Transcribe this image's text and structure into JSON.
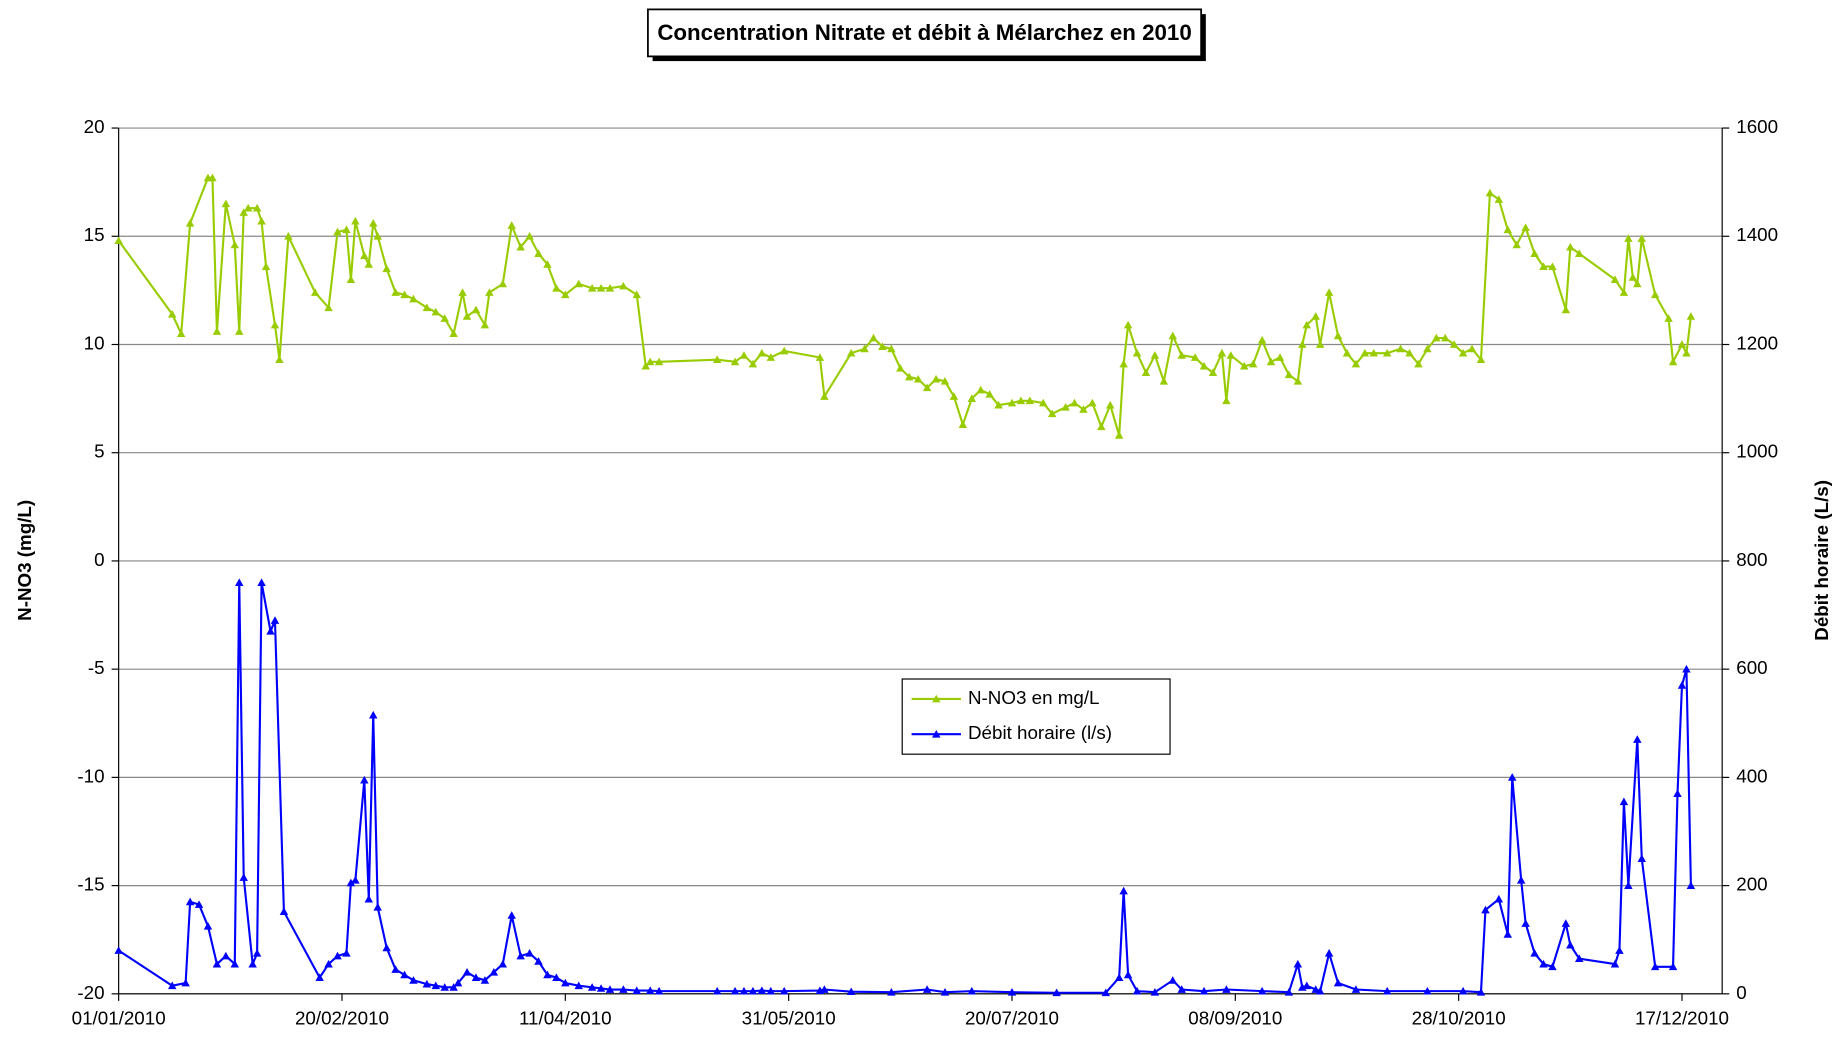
{
  "chart_data": {
    "type": "line",
    "title": "Concentration Nitrate et débit à Mélarchez en 2010",
    "y_label": "N-NO3 (mg/L)",
    "y2_label": "Débit horaire (L/s)",
    "xlim": [
      "01/01/2010",
      "26/12/2010"
    ],
    "xticks": [
      "01/01/2010",
      "20/02/2010",
      "11/04/2010",
      "31/05/2010",
      "20/07/2010",
      "08/09/2010",
      "28/10/2010",
      "17/12/2010"
    ],
    "ylim": [
      -20,
      20
    ],
    "yticks": [
      -20,
      -15,
      -10,
      -5,
      0,
      5,
      10,
      15,
      20
    ],
    "y2lim": [
      0,
      1600
    ],
    "y2ticks": [
      0,
      200,
      400,
      600,
      800,
      1000,
      1200,
      1400,
      1600
    ],
    "grid": true,
    "legend": "center",
    "series": [
      {
        "name": "N-NO3 en mg/L",
        "color": "#99cc00",
        "axis": "y",
        "x": [
          "01/01/2010",
          "13/01/2010",
          "15/01/2010",
          "17/01/2010",
          "21/01/2010",
          "22/01/2010",
          "23/01/2010",
          "25/01/2010",
          "27/01/2010",
          "28/01/2010",
          "29/01/2010",
          "30/01/2010",
          "01/02/2010",
          "02/02/2010",
          "03/02/2010",
          "05/02/2010",
          "06/02/2010",
          "08/02/2010",
          "14/02/2010",
          "17/02/2010",
          "19/02/2010",
          "21/02/2010",
          "22/02/2010",
          "23/02/2010",
          "25/02/2010",
          "26/02/2010",
          "27/02/2010",
          "28/02/2010",
          "02/03/2010",
          "04/03/2010",
          "06/03/2010",
          "08/03/2010",
          "11/03/2010",
          "13/03/2010",
          "15/03/2010",
          "17/03/2010",
          "19/03/2010",
          "20/03/2010",
          "22/03/2010",
          "24/03/2010",
          "25/03/2010",
          "28/03/2010",
          "30/03/2010",
          "01/04/2010",
          "03/04/2010",
          "05/04/2010",
          "07/04/2010",
          "09/04/2010",
          "11/04/2010",
          "14/04/2010",
          "17/04/2010",
          "19/04/2010",
          "21/04/2010",
          "24/04/2010",
          "27/04/2010",
          "29/04/2010",
          "30/04/2010",
          "02/05/2010",
          "15/05/2010",
          "19/05/2010",
          "21/05/2010",
          "23/05/2010",
          "25/05/2010",
          "27/05/2010",
          "30/05/2010",
          "07/06/2010",
          "08/06/2010",
          "14/06/2010",
          "17/06/2010",
          "19/06/2010",
          "21/06/2010",
          "23/06/2010",
          "25/06/2010",
          "27/06/2010",
          "29/06/2010",
          "01/07/2010",
          "03/07/2010",
          "05/07/2010",
          "07/07/2010",
          "09/07/2010",
          "11/07/2010",
          "13/07/2010",
          "15/07/2010",
          "17/07/2010",
          "20/07/2010",
          "22/07/2010",
          "24/07/2010",
          "27/07/2010",
          "29/07/2010",
          "01/08/2010",
          "03/08/2010",
          "05/08/2010",
          "07/08/2010",
          "09/08/2010",
          "11/08/2010",
          "13/08/2010",
          "14/08/2010",
          "15/08/2010",
          "17/08/2010",
          "19/08/2010",
          "21/08/2010",
          "23/08/2010",
          "25/08/2010",
          "27/08/2010",
          "30/08/2010",
          "01/09/2010",
          "03/09/2010",
          "05/09/2010",
          "06/09/2010",
          "07/09/2010",
          "10/09/2010",
          "12/09/2010",
          "14/09/2010",
          "16/09/2010",
          "18/09/2010",
          "20/09/2010",
          "22/09/2010",
          "23/09/2010",
          "24/09/2010",
          "26/09/2010",
          "27/09/2010",
          "29/09/2010",
          "01/10/2010",
          "03/10/2010",
          "05/10/2010",
          "07/10/2010",
          "09/10/2010",
          "12/10/2010",
          "15/10/2010",
          "17/10/2010",
          "19/10/2010",
          "21/10/2010",
          "23/10/2010",
          "25/10/2010",
          "27/10/2010",
          "29/10/2010",
          "31/10/2010",
          "02/11/2010",
          "04/11/2010",
          "06/11/2010",
          "08/11/2010",
          "10/11/2010",
          "12/11/2010",
          "14/11/2010",
          "16/11/2010",
          "18/11/2010",
          "21/11/2010",
          "22/11/2010",
          "24/11/2010",
          "02/12/2010",
          "04/12/2010",
          "05/12/2010",
          "06/12/2010",
          "07/12/2010",
          "08/12/2010",
          "11/12/2010",
          "14/12/2010",
          "15/12/2010",
          "17/12/2010",
          "18/12/2010",
          "19/12/2010"
        ],
        "values": [
          14.8,
          11.4,
          10.5,
          15.6,
          17.7,
          17.7,
          10.6,
          16.5,
          14.6,
          10.6,
          16.1,
          16.3,
          16.3,
          15.7,
          13.6,
          10.9,
          9.3,
          15.0,
          12.4,
          11.7,
          15.2,
          15.3,
          13.0,
          15.7,
          14.1,
          13.7,
          15.6,
          15.0,
          13.5,
          12.4,
          12.3,
          12.1,
          11.7,
          11.5,
          11.2,
          10.5,
          12.4,
          11.3,
          11.6,
          10.9,
          12.4,
          12.8,
          15.5,
          14.5,
          15.0,
          14.2,
          13.7,
          12.6,
          12.3,
          12.8,
          12.6,
          12.6,
          12.6,
          12.7,
          12.3,
          9.0,
          9.2,
          9.2,
          9.3,
          9.2,
          9.5,
          9.1,
          9.6,
          9.4,
          9.7,
          9.4,
          7.6,
          9.6,
          9.8,
          10.3,
          9.9,
          9.8,
          8.9,
          8.5,
          8.4,
          8.0,
          8.4,
          8.3,
          7.6,
          6.3,
          7.5,
          7.9,
          7.7,
          7.2,
          7.3,
          7.4,
          7.4,
          7.3,
          6.8,
          7.1,
          7.3,
          7.0,
          7.3,
          6.2,
          7.2,
          5.8,
          9.1,
          10.9,
          9.6,
          8.7,
          9.5,
          8.3,
          10.4,
          9.5,
          9.4,
          9.0,
          8.7,
          9.6,
          7.4,
          9.5,
          9.0,
          9.1,
          10.2,
          9.2,
          9.4,
          8.6,
          8.3,
          10.0,
          10.9,
          11.3,
          10.0,
          12.4,
          10.4,
          9.6,
          9.1,
          9.6,
          9.6,
          9.6,
          9.8,
          9.6,
          9.1,
          9.8,
          10.3,
          10.3,
          10.0,
          9.6,
          9.8,
          9.3,
          17.0,
          16.7,
          15.3,
          14.6,
          15.4,
          14.2,
          13.6,
          13.6,
          11.6,
          14.5,
          14.2,
          13.0,
          12.4,
          14.9,
          13.1,
          12.8,
          14.9,
          12.3,
          11.2,
          9.2,
          10.0,
          9.6,
          11.3
        ]
      },
      {
        "name": "Débit horaire (l/s)",
        "color": "#0000ff",
        "axis": "y2",
        "x": [
          "01/01/2010",
          "13/01/2010",
          "16/01/2010",
          "17/01/2010",
          "19/01/2010",
          "21/01/2010",
          "23/01/2010",
          "25/01/2010",
          "27/01/2010",
          "28/01/2010",
          "29/01/2010",
          "31/01/2010",
          "01/02/2010",
          "02/02/2010",
          "04/02/2010",
          "05/02/2010",
          "07/02/2010",
          "15/02/2010",
          "17/02/2010",
          "19/02/2010",
          "21/02/2010",
          "22/02/2010",
          "23/02/2010",
          "25/02/2010",
          "26/02/2010",
          "27/02/2010",
          "28/02/2010",
          "02/03/2010",
          "04/03/2010",
          "06/03/2010",
          "08/03/2010",
          "11/03/2010",
          "13/03/2010",
          "15/03/2010",
          "17/03/2010",
          "18/03/2010",
          "20/03/2010",
          "22/03/2010",
          "24/03/2010",
          "26/03/2010",
          "28/03/2010",
          "30/03/2010",
          "01/04/2010",
          "03/04/2010",
          "05/04/2010",
          "07/04/2010",
          "09/04/2010",
          "11/04/2010",
          "14/04/2010",
          "17/04/2010",
          "19/04/2010",
          "21/04/2010",
          "24/04/2010",
          "27/04/2010",
          "30/04/2010",
          "02/05/2010",
          "15/05/2010",
          "19/05/2010",
          "21/05/2010",
          "23/05/2010",
          "25/05/2010",
          "27/05/2010",
          "30/05/2010",
          "07/06/2010",
          "08/06/2010",
          "14/06/2010",
          "23/06/2010",
          "01/07/2010",
          "05/07/2010",
          "11/07/2010",
          "20/07/2010",
          "30/07/2010",
          "10/08/2010",
          "13/08/2010",
          "14/08/2010",
          "15/08/2010",
          "17/08/2010",
          "21/08/2010",
          "25/08/2010",
          "27/08/2010",
          "01/09/2010",
          "06/09/2010",
          "14/09/2010",
          "20/09/2010",
          "22/09/2010",
          "23/09/2010",
          "24/09/2010",
          "26/09/2010",
          "27/09/2010",
          "29/09/2010",
          "01/10/2010",
          "05/10/2010",
          "12/10/2010",
          "21/10/2010",
          "29/10/2010",
          "02/11/2010",
          "03/11/2010",
          "06/11/2010",
          "08/11/2010",
          "09/11/2010",
          "11/11/2010",
          "12/11/2010",
          "14/11/2010",
          "16/11/2010",
          "18/11/2010",
          "21/11/2010",
          "22/11/2010",
          "24/11/2010",
          "02/12/2010",
          "03/12/2010",
          "04/12/2010",
          "05/12/2010",
          "07/12/2010",
          "08/12/2010",
          "11/12/2010",
          "15/12/2010",
          "16/12/2010",
          "17/12/2010",
          "18/12/2010",
          "19/12/2010"
        ],
        "values": [
          80,
          15,
          20,
          170,
          165,
          125,
          55,
          70,
          55,
          760,
          215,
          55,
          75,
          760,
          670,
          690,
          152,
          30,
          55,
          70,
          75,
          205,
          210,
          395,
          175,
          515,
          160,
          85,
          45,
          35,
          25,
          18,
          15,
          12,
          12,
          20,
          40,
          30,
          25,
          40,
          55,
          145,
          70,
          75,
          60,
          35,
          30,
          20,
          15,
          12,
          10,
          8,
          8,
          6,
          6,
          5,
          5,
          5,
          5,
          5,
          6,
          5,
          5,
          6,
          8,
          4,
          3,
          8,
          3,
          5,
          3,
          2,
          2,
          30,
          190,
          35,
          5,
          3,
          25,
          8,
          5,
          8,
          5,
          3,
          55,
          12,
          15,
          8,
          5,
          75,
          20,
          8,
          5,
          5,
          5,
          3,
          155,
          175,
          110,
          400,
          210,
          130,
          75,
          55,
          50,
          130,
          90,
          65,
          55,
          80,
          355,
          200,
          470,
          250,
          50,
          50,
          370,
          570,
          600,
          200
        ]
      }
    ]
  }
}
